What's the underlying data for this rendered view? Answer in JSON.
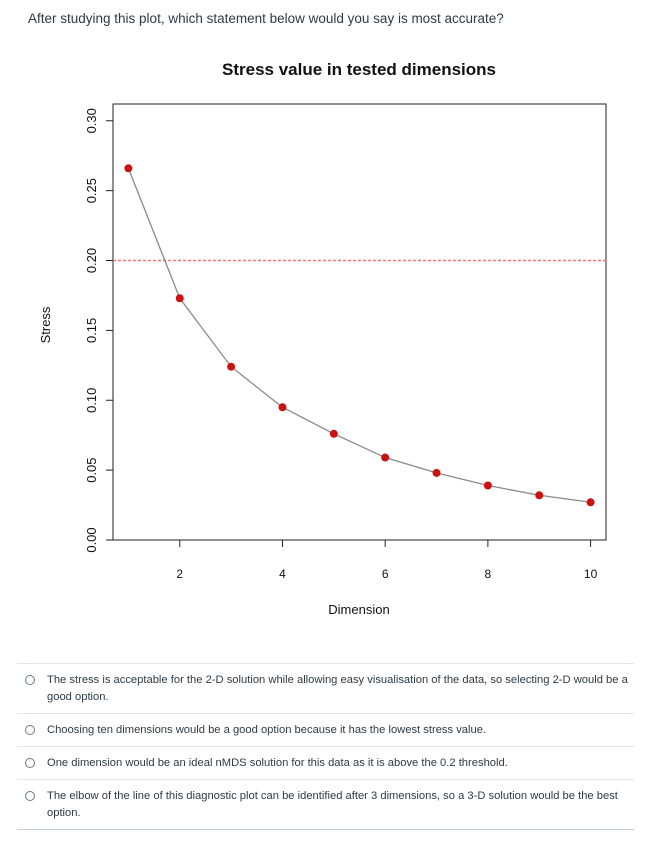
{
  "question": {
    "text": "After studying this plot, which statement below would you say is most accurate?"
  },
  "chart_data": {
    "type": "line",
    "title": "Stress value in tested dimensions",
    "xlabel": "Dimension",
    "ylabel": "Stress",
    "x": [
      1,
      2,
      3,
      4,
      5,
      6,
      7,
      8,
      9,
      10
    ],
    "y": [
      0.266,
      0.173,
      0.124,
      0.095,
      0.076,
      0.059,
      0.048,
      0.039,
      0.032,
      0.027
    ],
    "xlim": [
      0.7,
      10.3
    ],
    "ylim": [
      0.0,
      0.312
    ],
    "x_ticks": [
      2,
      4,
      6,
      8,
      10
    ],
    "x_tick_labels": [
      "2",
      "4",
      "6",
      "8",
      "10"
    ],
    "y_ticks": [
      0.0,
      0.05,
      0.1,
      0.15,
      0.2,
      0.25,
      0.3
    ],
    "y_tick_labels": [
      "0.00",
      "0.05",
      "0.10",
      "0.15",
      "0.20",
      "0.25",
      "0.30"
    ],
    "threshold": 0.2,
    "line_color": "#8a8a8a",
    "point_color": "#cc1111",
    "threshold_color": "#ff7070"
  },
  "options": [
    {
      "label": "The stress is acceptable for the 2-D solution while allowing easy visualisation of the data, so selecting 2-D would be a good option."
    },
    {
      "label": "Choosing ten dimensions would be a good option because it has the lowest stress value."
    },
    {
      "label": "One dimension would be an ideal nMDS solution for this data as it is above the 0.2 threshold."
    },
    {
      "label": "The elbow of the line of this diagnostic plot can be identified after 3 dimensions, so a 3-D solution would be the best option."
    }
  ]
}
